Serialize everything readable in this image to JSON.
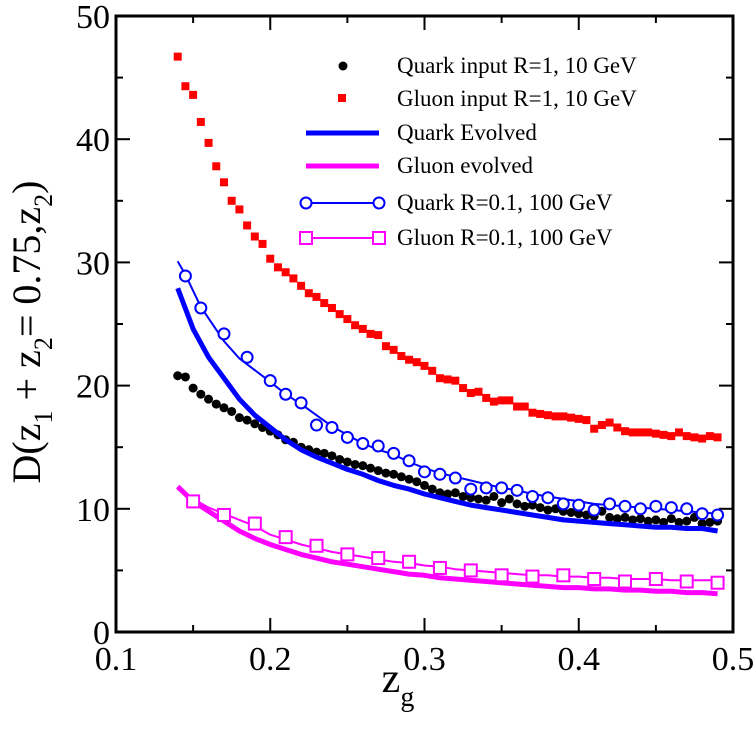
{
  "chart_data": {
    "type": "scatter",
    "xlabel": "z",
    "xlabel_sub": "g",
    "ylabel_parts": [
      "D(z",
      "1",
      " + z",
      "2",
      "= 0.75,z",
      "2",
      ")"
    ],
    "xlim": [
      0.1,
      0.5
    ],
    "ylim": [
      0,
      50
    ],
    "xticks": [
      0.1,
      0.2,
      0.3,
      0.4,
      0.5
    ],
    "xtick_labels": [
      "0.1",
      "0.2",
      "0.3",
      "0.4",
      "0.5"
    ],
    "yticks": [
      0,
      10,
      20,
      30,
      40,
      50
    ],
    "ytick_labels": [
      "0",
      "10",
      "20",
      "30",
      "40",
      "50"
    ],
    "legend_position": "top-right",
    "colors": {
      "quark_input": "#000000",
      "gluon_input": "#ff0000",
      "quark": "#0000ff",
      "gluon": "#ff00ff"
    },
    "series": [
      {
        "name": "Quark input R=1, 10 GeV",
        "style": "dots",
        "color": "#000000",
        "x": [
          0.14,
          0.145,
          0.15,
          0.155,
          0.16,
          0.165,
          0.17,
          0.175,
          0.18,
          0.185,
          0.19,
          0.195,
          0.2,
          0.205,
          0.21,
          0.215,
          0.22,
          0.225,
          0.23,
          0.235,
          0.24,
          0.245,
          0.25,
          0.255,
          0.26,
          0.265,
          0.27,
          0.275,
          0.28,
          0.285,
          0.29,
          0.295,
          0.3,
          0.305,
          0.31,
          0.315,
          0.32,
          0.325,
          0.33,
          0.335,
          0.34,
          0.345,
          0.35,
          0.355,
          0.36,
          0.365,
          0.37,
          0.375,
          0.38,
          0.385,
          0.39,
          0.395,
          0.4,
          0.405,
          0.41,
          0.415,
          0.42,
          0.425,
          0.43,
          0.435,
          0.44,
          0.445,
          0.45,
          0.455,
          0.46,
          0.465,
          0.47,
          0.475,
          0.48,
          0.485,
          0.49
        ],
        "values": [
          20.8,
          20.7,
          19.8,
          19.3,
          18.9,
          18.5,
          18.2,
          17.9,
          17.4,
          17.2,
          16.9,
          16.6,
          16.3,
          16.0,
          15.6,
          15.4,
          15.0,
          14.8,
          14.6,
          14.5,
          14.3,
          14.0,
          13.8,
          13.6,
          13.5,
          13.3,
          13.1,
          12.9,
          12.8,
          12.6,
          12.4,
          12.2,
          11.9,
          11.6,
          11.3,
          11.2,
          11.3,
          11.0,
          10.9,
          10.8,
          10.7,
          11.0,
          10.5,
          10.8,
          10.4,
          10.2,
          10.3,
          10.1,
          9.9,
          10.0,
          9.8,
          9.7,
          9.6,
          9.5,
          9.4,
          9.8,
          9.3,
          9.2,
          9.3,
          9.1,
          9.2,
          9.0,
          9.1,
          8.9,
          9.2,
          8.9,
          9.0,
          9.3,
          8.8,
          8.9,
          9.0
        ]
      },
      {
        "name": "Gluon input R=1, 10 GeV",
        "style": "squares",
        "color": "#ff0000",
        "x": [
          0.14,
          0.145,
          0.15,
          0.155,
          0.16,
          0.165,
          0.17,
          0.175,
          0.18,
          0.185,
          0.19,
          0.195,
          0.2,
          0.205,
          0.21,
          0.215,
          0.22,
          0.225,
          0.23,
          0.235,
          0.24,
          0.245,
          0.25,
          0.255,
          0.26,
          0.265,
          0.27,
          0.275,
          0.28,
          0.285,
          0.29,
          0.295,
          0.3,
          0.305,
          0.31,
          0.315,
          0.32,
          0.325,
          0.33,
          0.335,
          0.34,
          0.345,
          0.35,
          0.355,
          0.36,
          0.365,
          0.37,
          0.375,
          0.38,
          0.385,
          0.39,
          0.395,
          0.4,
          0.405,
          0.41,
          0.415,
          0.42,
          0.425,
          0.43,
          0.435,
          0.44,
          0.445,
          0.45,
          0.455,
          0.46,
          0.465,
          0.47,
          0.475,
          0.48,
          0.485,
          0.49
        ],
        "values": [
          46.7,
          44.3,
          43.6,
          41.4,
          39.7,
          37.8,
          36.5,
          35.0,
          34.3,
          33.0,
          32.1,
          31.5,
          30.3,
          29.6,
          29.2,
          28.7,
          28.1,
          27.5,
          27.2,
          26.7,
          26.3,
          25.8,
          25.4,
          24.9,
          24.6,
          24.2,
          24.1,
          23.2,
          22.9,
          22.4,
          22.1,
          21.9,
          21.6,
          21.2,
          20.6,
          20.5,
          20.4,
          19.8,
          19.4,
          19.5,
          19.0,
          18.7,
          18.8,
          18.8,
          18.3,
          18.3,
          17.8,
          17.7,
          17.6,
          17.5,
          17.5,
          17.4,
          17.3,
          17.2,
          16.5,
          16.8,
          17.0,
          16.6,
          16.3,
          16.2,
          16.2,
          16.2,
          16.1,
          16.0,
          15.9,
          16.2,
          15.9,
          15.8,
          15.7,
          15.9,
          15.8
        ]
      },
      {
        "name": "Quark Evolved",
        "style": "line",
        "color": "#0000ff",
        "x": [
          0.14,
          0.15,
          0.16,
          0.17,
          0.18,
          0.19,
          0.2,
          0.21,
          0.22,
          0.23,
          0.24,
          0.25,
          0.26,
          0.27,
          0.28,
          0.29,
          0.3,
          0.31,
          0.32,
          0.33,
          0.34,
          0.35,
          0.36,
          0.37,
          0.38,
          0.39,
          0.4,
          0.41,
          0.42,
          0.43,
          0.44,
          0.45,
          0.46,
          0.47,
          0.48,
          0.49
        ],
        "values": [
          27.9,
          24.6,
          22.3,
          20.6,
          18.9,
          17.6,
          16.6,
          15.6,
          14.8,
          14.2,
          13.7,
          13.2,
          12.8,
          12.3,
          11.9,
          11.6,
          11.2,
          10.9,
          10.6,
          10.3,
          10.1,
          9.9,
          9.7,
          9.5,
          9.3,
          9.1,
          9.0,
          8.9,
          8.8,
          8.7,
          8.6,
          8.5,
          8.5,
          8.4,
          8.4,
          8.2
        ]
      },
      {
        "name": "Gluon evolved",
        "style": "line",
        "color": "#ff00ff",
        "x": [
          0.14,
          0.15,
          0.16,
          0.17,
          0.18,
          0.19,
          0.2,
          0.21,
          0.22,
          0.23,
          0.24,
          0.25,
          0.26,
          0.27,
          0.28,
          0.29,
          0.3,
          0.31,
          0.32,
          0.33,
          0.34,
          0.35,
          0.36,
          0.37,
          0.38,
          0.39,
          0.4,
          0.41,
          0.42,
          0.43,
          0.44,
          0.45,
          0.46,
          0.47,
          0.48,
          0.49
        ],
        "values": [
          11.8,
          10.6,
          9.8,
          9.0,
          8.2,
          7.6,
          7.1,
          6.7,
          6.3,
          6.0,
          5.7,
          5.5,
          5.3,
          5.1,
          4.9,
          4.7,
          4.6,
          4.4,
          4.3,
          4.2,
          4.1,
          4.0,
          3.9,
          3.8,
          3.7,
          3.6,
          3.6,
          3.5,
          3.5,
          3.4,
          3.4,
          3.3,
          3.3,
          3.2,
          3.2,
          3.1
        ]
      },
      {
        "name": "Quark R=0.1, 100 GeV",
        "style": "line-circles",
        "color": "#0000ff",
        "x": [
          0.14,
          0.145,
          0.155,
          0.17,
          0.18,
          0.2,
          0.21,
          0.22,
          0.23,
          0.24,
          0.25,
          0.26,
          0.27,
          0.28,
          0.29,
          0.3,
          0.31,
          0.32,
          0.33,
          0.34,
          0.35,
          0.36,
          0.37,
          0.38,
          0.39,
          0.4,
          0.41,
          0.42,
          0.43,
          0.44,
          0.45,
          0.46,
          0.47,
          0.48,
          0.49
        ],
        "line_values": [
          30.1,
          29.0,
          26.4,
          23.6,
          22.2,
          20.3,
          19.3,
          18.5,
          17.6,
          16.7,
          16.0,
          15.3,
          14.8,
          14.4,
          13.8,
          13.3,
          12.9,
          12.6,
          12.3,
          12.0,
          11.7,
          11.5,
          11.2,
          11.0,
          10.8,
          10.6,
          10.4,
          10.3,
          10.2,
          10.1,
          10.0,
          9.9,
          9.8,
          9.7,
          9.6
        ],
        "marker_x": [
          0.145,
          0.155,
          0.17,
          0.185,
          0.2,
          0.21,
          0.22,
          0.23,
          0.24,
          0.25,
          0.26,
          0.27,
          0.28,
          0.29,
          0.3,
          0.31,
          0.32,
          0.33,
          0.34,
          0.35,
          0.36,
          0.37,
          0.38,
          0.39,
          0.4,
          0.41,
          0.42,
          0.43,
          0.44,
          0.45,
          0.46,
          0.47,
          0.48,
          0.49
        ],
        "marker_values": [
          28.9,
          26.3,
          24.2,
          22.3,
          20.4,
          19.3,
          18.6,
          16.8,
          16.6,
          15.8,
          15.3,
          15.1,
          14.5,
          13.9,
          13.0,
          12.8,
          12.5,
          11.6,
          11.7,
          11.7,
          11.5,
          11.0,
          10.9,
          10.4,
          10.3,
          9.9,
          10.4,
          10.2,
          10.0,
          10.2,
          10.1,
          10.0,
          9.6,
          9.5
        ]
      },
      {
        "name": "Gluon R=0.1, 100 GeV",
        "style": "line-squares",
        "color": "#ff00ff",
        "x": [
          0.14,
          0.15,
          0.16,
          0.17,
          0.18,
          0.19,
          0.2,
          0.21,
          0.22,
          0.23,
          0.24,
          0.25,
          0.26,
          0.27,
          0.28,
          0.29,
          0.3,
          0.31,
          0.32,
          0.33,
          0.34,
          0.35,
          0.36,
          0.37,
          0.38,
          0.39,
          0.4,
          0.41,
          0.42,
          0.43,
          0.44,
          0.45,
          0.46,
          0.47,
          0.48,
          0.49
        ],
        "line_values": [
          11.6,
          10.8,
          10.1,
          9.6,
          9.1,
          8.6,
          7.9,
          7.5,
          7.1,
          6.8,
          6.5,
          6.3,
          6.1,
          5.9,
          5.7,
          5.6,
          5.4,
          5.3,
          5.1,
          5.0,
          4.9,
          4.8,
          4.7,
          4.6,
          4.6,
          4.5,
          4.5,
          4.4,
          4.4,
          4.3,
          4.3,
          4.3,
          4.2,
          4.2,
          4.2,
          4.2
        ],
        "marker_x": [
          0.15,
          0.17,
          0.19,
          0.21,
          0.23,
          0.25,
          0.27,
          0.29,
          0.31,
          0.33,
          0.35,
          0.37,
          0.39,
          0.41,
          0.43,
          0.45,
          0.47,
          0.49
        ],
        "marker_values": [
          10.6,
          9.5,
          8.8,
          7.7,
          7.0,
          6.3,
          6.0,
          5.7,
          5.2,
          5.0,
          4.6,
          4.5,
          4.6,
          4.3,
          4.1,
          4.3,
          4.1,
          4.0
        ]
      }
    ]
  }
}
